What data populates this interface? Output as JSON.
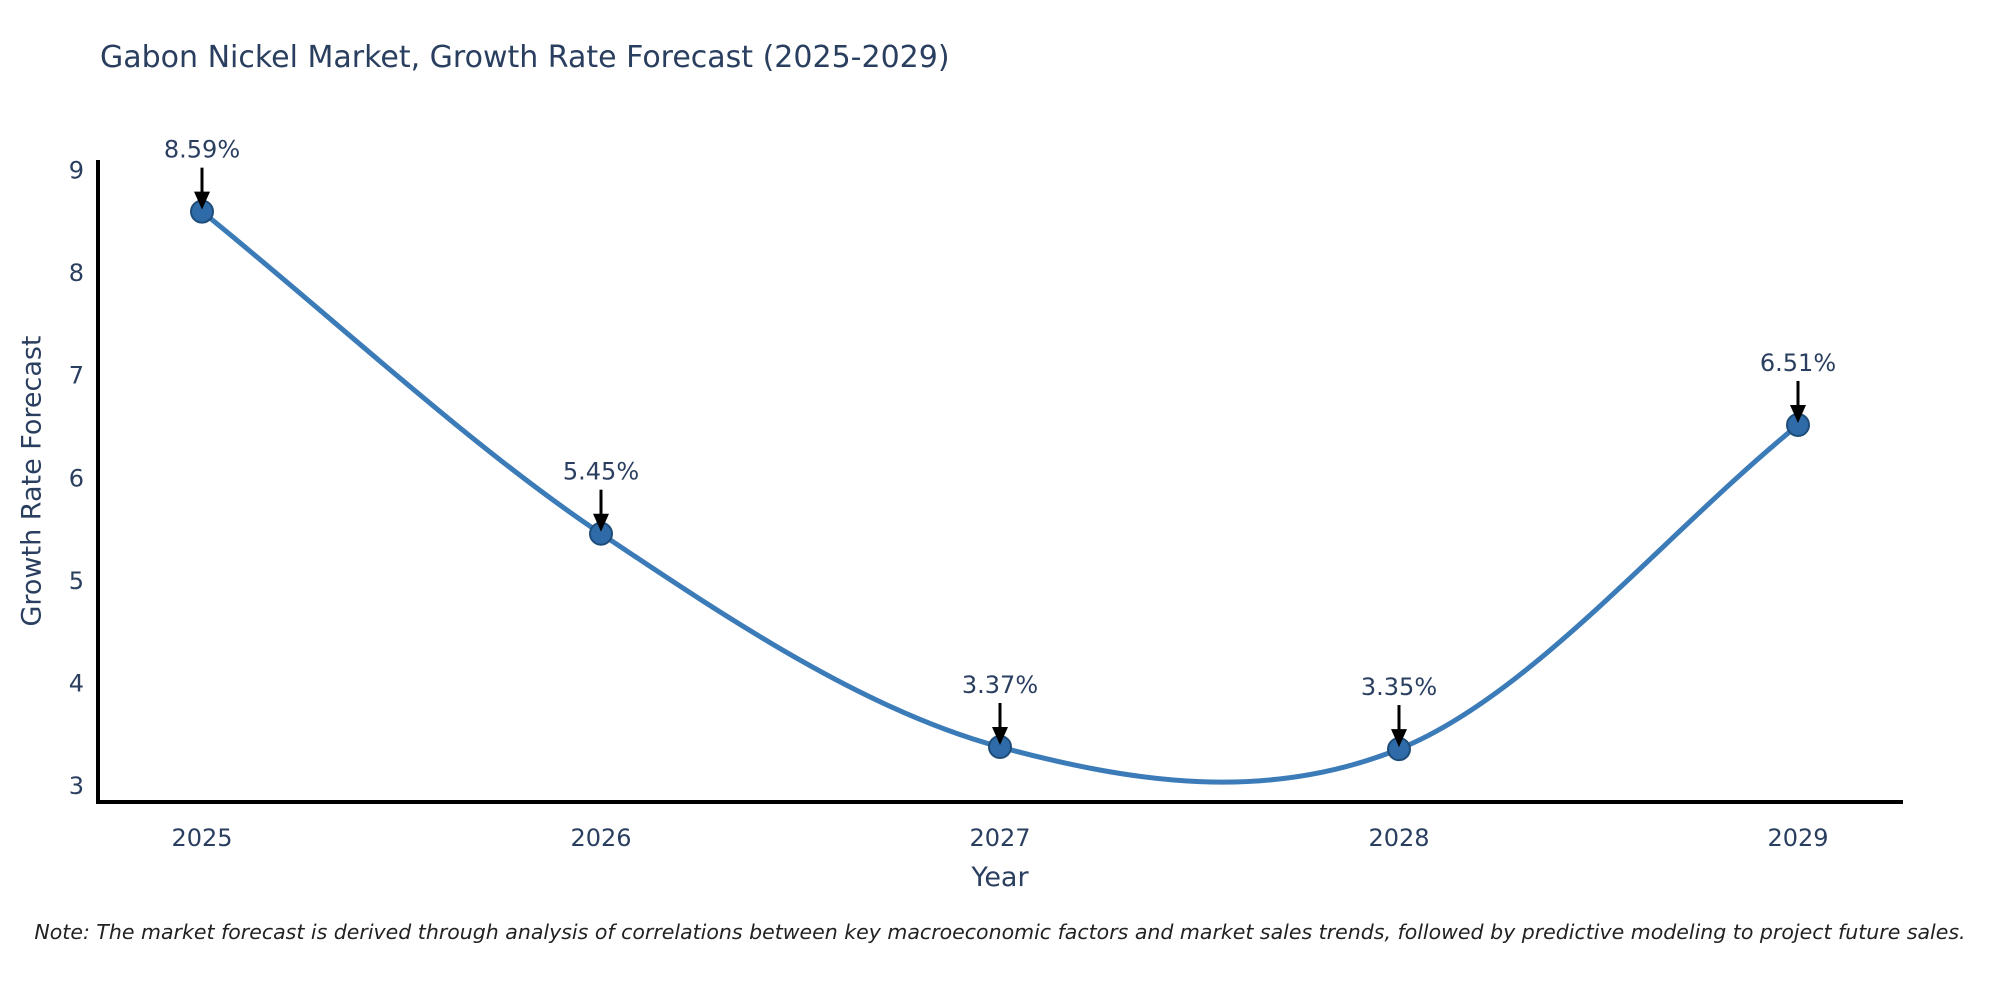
{
  "note": "Note: The market forecast is derived through analysis of correlations between key macroeconomic factors and market sales trends, followed by predictive modeling to project future sales.",
  "chart_data": {
    "type": "line",
    "title": "Gabon Nickel Market, Growth Rate Forecast (2025-2029)",
    "xlabel": "Year",
    "ylabel": "Growth Rate Forecast",
    "x": [
      2025,
      2026,
      2027,
      2028,
      2029
    ],
    "values": [
      8.59,
      5.45,
      3.37,
      3.35,
      6.51
    ],
    "point_labels": [
      "8.59%",
      "5.45%",
      "3.37%",
      "3.35%",
      "6.51%"
    ],
    "yticks": [
      3,
      4,
      5,
      6,
      7,
      8,
      9
    ],
    "ylim": [
      3,
      9
    ],
    "grid": false,
    "legend": "none",
    "line_shape": "spline",
    "markers": true,
    "annotation_arrows": true,
    "colors": {
      "line": "#3b7bb8",
      "marker_fill": "#2f6ba8",
      "marker_edge": "#1f4d7a",
      "axis": "#000000",
      "tick_text": "#2a3f5f",
      "annotation_text": "#2a3f5f",
      "annotation_arrow": "#000000"
    }
  }
}
